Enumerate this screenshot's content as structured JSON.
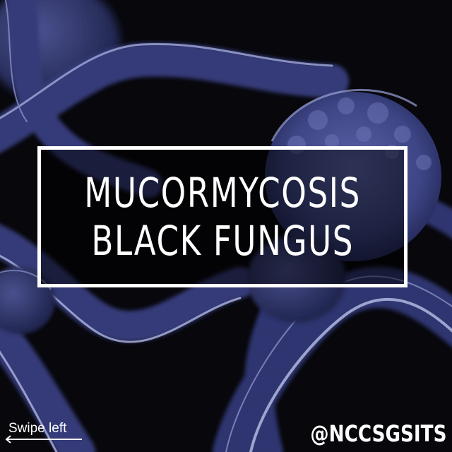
{
  "post": {
    "title_lines": [
      "MUCORMYCOSIS",
      "BLACK FUNGUS"
    ],
    "swipe_label": "Swipe left",
    "swipe_icon": "arrow-left-icon",
    "handle": "@NCCSGSITS"
  },
  "colors": {
    "background": "#07070c",
    "fungus": "#3d4585",
    "highlight": "#b8c0e8",
    "text": "#ffffff",
    "frame_border": "#ffffff"
  }
}
